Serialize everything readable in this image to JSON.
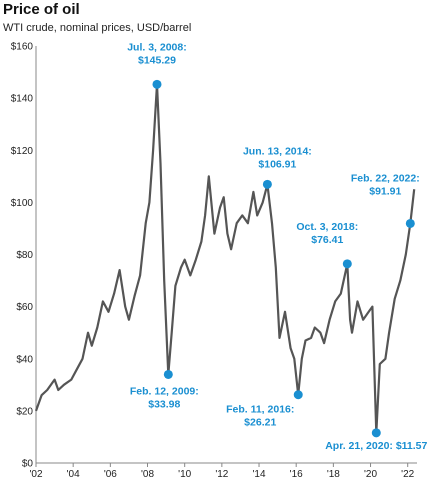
{
  "title": "Price of oil",
  "subtitle": "WTI crude, nominal prices, USD/barrel",
  "chart_data": {
    "type": "line",
    "title": "Price of oil",
    "subtitle": "WTI crude, nominal prices, USD/barrel",
    "xlabel": "",
    "ylabel": "",
    "xlim": [
      2002,
      2022.5
    ],
    "ylim": [
      0,
      160
    ],
    "x_ticks": [
      "'02",
      "'04",
      "'06",
      "'08",
      "'10",
      "'12",
      "'14",
      "'16",
      "'18",
      "'20",
      "'22"
    ],
    "y_ticks": [
      "$0",
      "$20",
      "$40",
      "$60",
      "$80",
      "$100",
      "$120",
      "$140",
      "$160"
    ],
    "line_color": "#555555",
    "highlight_color": "#1a8fd1",
    "grid": false,
    "series": [
      {
        "x": [
          2002.0,
          2002.3,
          2002.6,
          2003.0,
          2003.2,
          2003.5,
          2003.9,
          2004.2,
          2004.5,
          2004.8,
          2005.0,
          2005.3,
          2005.6,
          2005.9,
          2006.2,
          2006.5,
          2006.8,
          2007.0,
          2007.3,
          2007.6,
          2007.9,
          2008.1,
          2008.3,
          2008.51,
          2008.7,
          2008.9,
          2009.12,
          2009.3,
          2009.5,
          2009.8,
          2010.0,
          2010.3,
          2010.6,
          2010.9,
          2011.1,
          2011.3,
          2011.6,
          2011.9,
          2012.1,
          2012.3,
          2012.5,
          2012.8,
          2013.1,
          2013.4,
          2013.7,
          2013.9,
          2014.2,
          2014.45,
          2014.7,
          2014.9,
          2015.1,
          2015.4,
          2015.7,
          2015.9,
          2016.11,
          2016.3,
          2016.5,
          2016.8,
          2017.0,
          2017.3,
          2017.5,
          2017.8,
          2018.1,
          2018.4,
          2018.75,
          2018.9,
          2019.0,
          2019.3,
          2019.6,
          2019.9,
          2020.1,
          2020.31,
          2020.5,
          2020.8,
          2021.0,
          2021.3,
          2021.6,
          2021.9,
          2022.14,
          2022.35
        ],
        "y": [
          20,
          26,
          28,
          32,
          28,
          30,
          32,
          36,
          40,
          50,
          45,
          52,
          62,
          58,
          65,
          74,
          60,
          55,
          64,
          72,
          92,
          100,
          120,
          145.29,
          115,
          70,
          33.98,
          50,
          68,
          75,
          78,
          72,
          78,
          85,
          95,
          110,
          88,
          98,
          102,
          88,
          82,
          92,
          95,
          92,
          104,
          95,
          100,
          106.91,
          92,
          75,
          48,
          58,
          44,
          40,
          26.21,
          40,
          47,
          48,
          52,
          50,
          46,
          55,
          62,
          65,
          76.41,
          55,
          50,
          62,
          55,
          58,
          60,
          11.57,
          38,
          40,
          50,
          63,
          70,
          80,
          91.91,
          105
        ]
      }
    ],
    "annotations": [
      {
        "date": "Jul. 3, 2008:",
        "value": "$145.29",
        "x": 2008.51,
        "y": 145.29
      },
      {
        "date": "Feb. 12, 2009:",
        "value": "$33.98",
        "x": 2009.12,
        "y": 33.98
      },
      {
        "date": "Jun. 13, 2014:",
        "value": "$106.91",
        "x": 2014.45,
        "y": 106.91
      },
      {
        "date": "Feb. 11, 2016:",
        "value": "$26.21",
        "x": 2016.11,
        "y": 26.21
      },
      {
        "date": "Oct. 3, 2018:",
        "value": "$76.41",
        "x": 2018.75,
        "y": 76.41
      },
      {
        "date": "Apr. 21, 2020:",
        "value": "$11.57",
        "x": 2020.31,
        "y": 11.57
      },
      {
        "date": "Feb. 22, 2022:",
        "value": "$91.91",
        "x": 2022.14,
        "y": 91.91
      }
    ]
  }
}
